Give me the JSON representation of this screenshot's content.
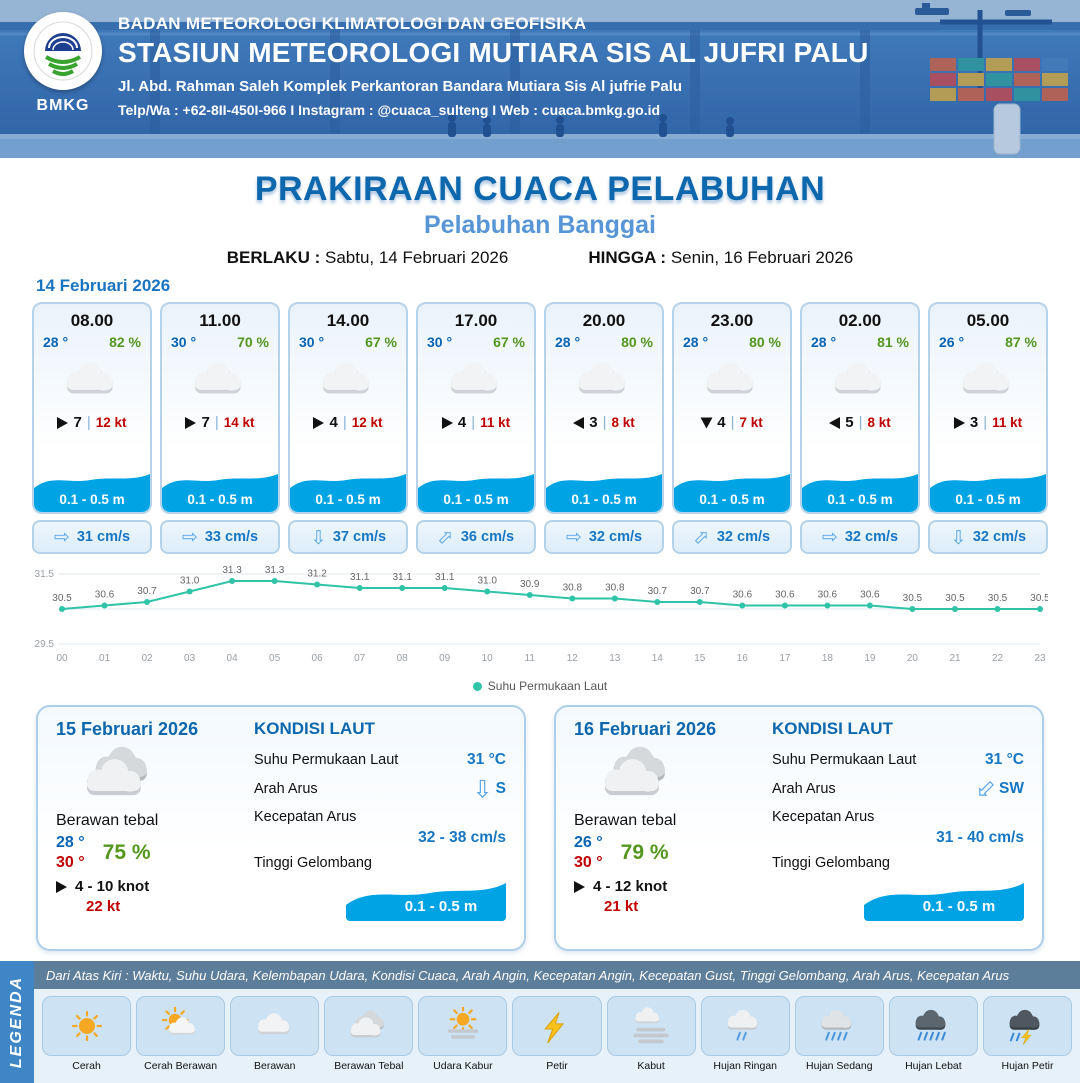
{
  "colors": {
    "title_blue": "#0d67ad",
    "subtitle_blue": "#5795d6",
    "temp_blue": "#0a64b4",
    "humidity_green": "#55961e",
    "gust_red": "#c00000",
    "wave_blue": "#00a3e4",
    "current_blue": "#1777c2",
    "chart_line": "#2fc3a7"
  },
  "header": {
    "org_line1": "BADAN METEOROLOGI KLIMATOLOGI DAN GEOFISIKA",
    "org_line2": "STASIUN METEOROLOGI MUTIARA SIS AL JUFRI PALU",
    "address": "Jl. Abd. Rahman Saleh Komplek Perkantoran Bandara Mutiara Sis Al jufrie Palu",
    "contact": "Telp/Wa : +62-8II-450I-966  I  Instagram : @cuaca_sulteng  I  Web : cuaca.bmkg.go.id",
    "logo_text": "BMKG"
  },
  "title": {
    "main": "PRAKIRAAN CUACA PELABUHAN",
    "sub": "Pelabuhan Banggai",
    "berlaku_label": "BERLAKU :",
    "berlaku_value": "Sabtu, 14 Februari 2026",
    "hingga_label": "HINGGA :",
    "hingga_value": "Senin, 16 Februari 2026"
  },
  "forecast": {
    "date_label": "14 Februari 2026",
    "cards": [
      {
        "time": "08.00",
        "temp": "28 °",
        "humidity": "82 %",
        "icon": "berawan",
        "wind_dir_deg": 0,
        "wind_speed": "7",
        "gust": "12 kt",
        "wave": "0.1 - 0.5 m",
        "current_dir_deg": 0,
        "current_speed": "31 cm/s"
      },
      {
        "time": "11.00",
        "temp": "30 °",
        "humidity": "70 %",
        "icon": "berawan",
        "wind_dir_deg": 0,
        "wind_speed": "7",
        "gust": "14 kt",
        "wave": "0.1 - 0.5 m",
        "current_dir_deg": 0,
        "current_speed": "33 cm/s"
      },
      {
        "time": "14.00",
        "temp": "30 °",
        "humidity": "67 %",
        "icon": "berawan",
        "wind_dir_deg": 0,
        "wind_speed": "4",
        "gust": "12 kt",
        "wave": "0.1 - 0.5 m",
        "current_dir_deg": 90,
        "current_speed": "37 cm/s"
      },
      {
        "time": "17.00",
        "temp": "30 °",
        "humidity": "67 %",
        "icon": "berawan",
        "wind_dir_deg": 0,
        "wind_speed": "4",
        "gust": "11 kt",
        "wave": "0.1 - 0.5 m",
        "current_dir_deg": -45,
        "current_speed": "36 cm/s"
      },
      {
        "time": "20.00",
        "temp": "28 °",
        "humidity": "80 %",
        "icon": "berawan",
        "wind_dir_deg": 180,
        "wind_speed": "3",
        "gust": "8 kt",
        "wave": "0.1 - 0.5 m",
        "current_dir_deg": 0,
        "current_speed": "32 cm/s"
      },
      {
        "time": "23.00",
        "temp": "28 °",
        "humidity": "80 %",
        "icon": "berawan",
        "wind_dir_deg": 90,
        "wind_speed": "4",
        "gust": "7 kt",
        "wave": "0.1 - 0.5 m",
        "current_dir_deg": -45,
        "current_speed": "32 cm/s"
      },
      {
        "time": "02.00",
        "temp": "28 °",
        "humidity": "81 %",
        "icon": "berawan",
        "wind_dir_deg": 180,
        "wind_speed": "5",
        "gust": "8 kt",
        "wave": "0.1 - 0.5 m",
        "current_dir_deg": 0,
        "current_speed": "32 cm/s"
      },
      {
        "time": "05.00",
        "temp": "26 °",
        "humidity": "87 %",
        "icon": "berawan",
        "wind_dir_deg": 0,
        "wind_speed": "3",
        "gust": "11 kt",
        "wave": "0.1 - 0.5 m",
        "current_dir_deg": 90,
        "current_speed": "32 cm/s"
      }
    ]
  },
  "chart_data": {
    "type": "line",
    "title": "",
    "xlabel": "",
    "ylabel": "",
    "x_labels": [
      "00",
      "01",
      "02",
      "03",
      "04",
      "05",
      "06",
      "07",
      "08",
      "09",
      "10",
      "11",
      "12",
      "13",
      "14",
      "15",
      "16",
      "17",
      "18",
      "19",
      "20",
      "21",
      "22",
      "23"
    ],
    "values": [
      30.5,
      30.6,
      30.7,
      31.0,
      31.3,
      31.3,
      31.2,
      31.1,
      31.1,
      31.1,
      31.0,
      30.9,
      30.8,
      30.8,
      30.7,
      30.7,
      30.6,
      30.6,
      30.6,
      30.6,
      30.5,
      30.5,
      30.5,
      30.5
    ],
    "ylim": [
      29.5,
      31.5
    ],
    "yticks": [
      31.5,
      29.5
    ],
    "grid": true,
    "legend": "Suhu Permukaan Laut",
    "legend_position": "bottom-center",
    "line_color": "#2fc3a7"
  },
  "daily_cards": [
    {
      "date": "15 Februari 2026",
      "icon": "berawan-tebal",
      "condition": "Berawan tebal",
      "temp_min": "28 °",
      "temp_max": "30 °",
      "humidity": "75 %",
      "wind": "4  - 10 knot",
      "gust": "22 kt",
      "sea": {
        "title": "KONDISI LAUT",
        "sst_label": "Suhu Permukaan Laut",
        "sst_value": "31 °C",
        "current_dir_label": "Arah Arus",
        "current_dir": "S",
        "current_dir_deg": 90,
        "current_speed_label": "Kecepatan Arus",
        "current_speed": "32 - 38 cm/s",
        "wave_label": "Tinggi Gelombang",
        "wave_value": "0.1 - 0.5 m"
      }
    },
    {
      "date": "16 Februari 2026",
      "icon": "berawan-tebal",
      "condition": "Berawan tebal",
      "temp_min": "26 °",
      "temp_max": "30 °",
      "humidity": "79 %",
      "wind": "4  - 12 knot",
      "gust": "21 kt",
      "sea": {
        "title": "KONDISI LAUT",
        "sst_label": "Suhu Permukaan Laut",
        "sst_value": "31 °C",
        "current_dir_label": "Arah Arus",
        "current_dir": "SW",
        "current_dir_deg": 135,
        "current_speed_label": "Kecepatan Arus",
        "current_speed": "31 - 40 cm/s",
        "wave_label": "Tinggi Gelombang",
        "wave_value": "0.1 - 0.5 m"
      }
    }
  ],
  "legend": {
    "vertical_label": "LEGENDA",
    "info": "Dari Atas Kiri : Waktu, Suhu Udara, Kelembapan Udara, Kondisi Cuaca, Arah Angin, Kecepatan Angin, Kecepatan Gust, Tinggi Gelombang, Arah Arus, Kecepatan Arus",
    "items": [
      {
        "label": "Cerah",
        "icon": "cerah"
      },
      {
        "label": "Cerah Berawan",
        "icon": "cerah-berawan"
      },
      {
        "label": "Berawan",
        "icon": "berawan"
      },
      {
        "label": "Berawan Tebal",
        "icon": "berawan-tebal"
      },
      {
        "label": "Udara Kabur",
        "icon": "udara-kabur"
      },
      {
        "label": "Petir",
        "icon": "petir"
      },
      {
        "label": "Kabut",
        "icon": "kabut"
      },
      {
        "label": "Hujan Ringan",
        "icon": "hujan-ringan"
      },
      {
        "label": "Hujan Sedang",
        "icon": "hujan-sedang"
      },
      {
        "label": "Hujan Lebat",
        "icon": "hujan-lebat"
      },
      {
        "label": "Hujan Petir",
        "icon": "hujan-petir"
      }
    ]
  }
}
